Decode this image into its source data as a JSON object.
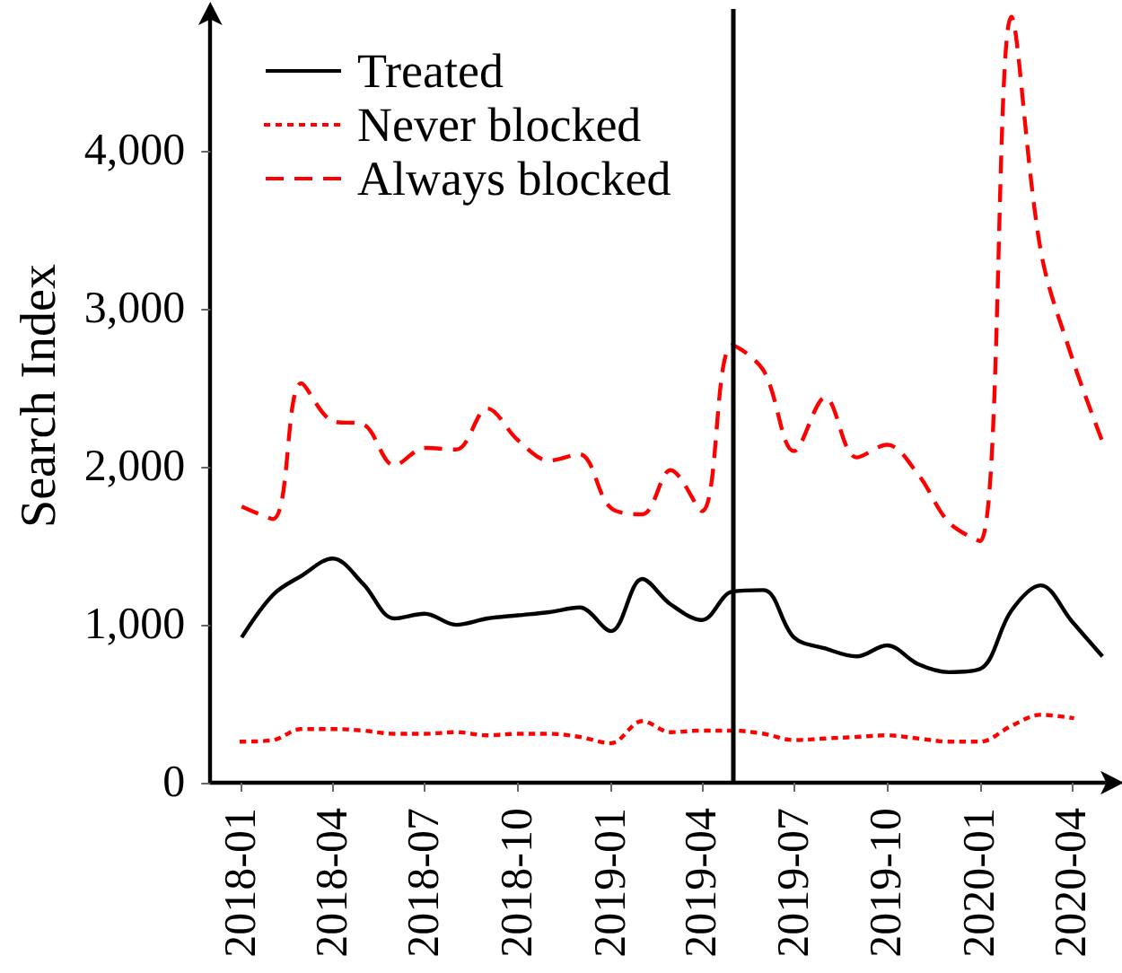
{
  "chart_data": {
    "type": "line",
    "ylabel": "Search Index",
    "x": [
      "2018-01",
      "2018-02",
      "2018-03",
      "2018-04",
      "2018-05",
      "2018-06",
      "2018-07",
      "2018-08",
      "2018-09",
      "2018-10",
      "2018-11",
      "2018-12",
      "2019-01",
      "2019-02",
      "2019-03",
      "2019-04",
      "2019-05",
      "2019-06",
      "2019-07",
      "2019-08",
      "2019-09",
      "2019-10",
      "2019-11",
      "2019-12",
      "2020-01",
      "2020-02",
      "2020-03",
      "2020-04",
      "2020-05"
    ],
    "series": [
      {
        "name": "Treated",
        "color": "#000000",
        "line_style": "solid",
        "values": [
          920,
          1190,
          1310,
          1420,
          1260,
          1040,
          1070,
          1000,
          1040,
          1060,
          1080,
          1110,
          960,
          1290,
          1130,
          1030,
          1210,
          1220,
          920,
          850,
          800,
          870,
          750,
          700,
          720,
          1090,
          1250,
          1020,
          800
        ]
      },
      {
        "name": "Never blocked",
        "color": "#ff0000",
        "line_style": "dotted",
        "values": [
          260,
          270,
          340,
          340,
          330,
          310,
          310,
          320,
          300,
          310,
          310,
          290,
          250,
          390,
          320,
          330,
          330,
          310,
          270,
          280,
          290,
          300,
          280,
          260,
          260,
          360,
          430,
          410,
          null
        ]
      },
      {
        "name": "Always blocked",
        "color": "#ff0000",
        "line_style": "dashed",
        "values": [
          1750,
          1670,
          2530,
          2290,
          2270,
          2010,
          2120,
          2110,
          2370,
          2170,
          2040,
          2080,
          1740,
          1700,
          1980,
          1720,
          2770,
          2610,
          2100,
          2440,
          2060,
          2140,
          1950,
          1650,
          1530,
          4850,
          3370,
          2690,
          2160
        ]
      }
    ],
    "xlim": [
      "2017-12",
      "2020-05-15"
    ],
    "xticks": [
      "2018-01",
      "2018-04",
      "2018-07",
      "2018-10",
      "2019-01",
      "2019-04",
      "2019-07",
      "2019-10",
      "2020-01",
      "2020-04"
    ],
    "ylim": [
      0,
      4900
    ],
    "yticks": [
      0,
      {
        "value": 1000,
        "label": "1,000"
      },
      {
        "value": 2000,
        "label": "2,000"
      },
      {
        "value": 3000,
        "label": "3,000"
      },
      {
        "value": 4000,
        "label": "4,000"
      }
    ],
    "ref_lines": [
      {
        "axis": "x",
        "value": "2019-05",
        "color": "#000000",
        "line_style": "solid"
      }
    ],
    "legend": "top left",
    "grid": false,
    "marker": "none"
  }
}
